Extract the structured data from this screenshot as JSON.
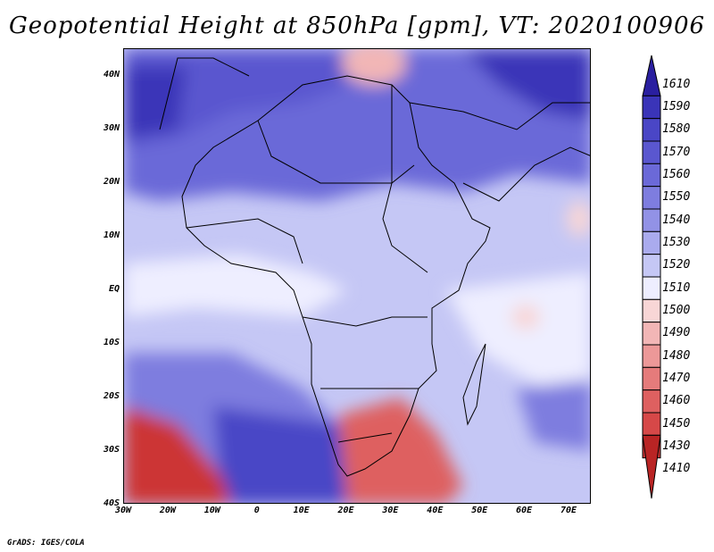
{
  "title": "Geopotential Height at 850hPa [gpm], VT: 2020100906",
  "credit": "GrADS: IGES/COLA",
  "map": {
    "extent": {
      "lon_min": -30,
      "lon_max": 75,
      "lat_min": -40,
      "lat_max": 45
    },
    "lat_ticks": [
      {
        "lat": 40,
        "label": "40N"
      },
      {
        "lat": 30,
        "label": "30N"
      },
      {
        "lat": 20,
        "label": "20N"
      },
      {
        "lat": 10,
        "label": "10N"
      },
      {
        "lat": 0,
        "label": "EQ"
      },
      {
        "lat": -10,
        "label": "10S"
      },
      {
        "lat": -20,
        "label": "20S"
      },
      {
        "lat": -30,
        "label": "30S"
      },
      {
        "lat": -40,
        "label": "40S"
      }
    ],
    "lon_ticks": [
      {
        "lon": -30,
        "label": "30W"
      },
      {
        "lon": -20,
        "label": "20W"
      },
      {
        "lon": -10,
        "label": "10W"
      },
      {
        "lon": 0,
        "label": "0"
      },
      {
        "lon": 10,
        "label": "10E"
      },
      {
        "lon": 20,
        "label": "20E"
      },
      {
        "lon": 30,
        "label": "30E"
      },
      {
        "lon": 40,
        "label": "40E"
      },
      {
        "lon": 50,
        "label": "50E"
      },
      {
        "lon": 60,
        "label": "60E"
      },
      {
        "lon": 70,
        "label": "70E"
      }
    ]
  },
  "colorbar": {
    "levels": [
      {
        "label": "1610",
        "color": "#2a1fa0"
      },
      {
        "label": "1590",
        "color": "#3a34b8"
      },
      {
        "label": "1580",
        "color": "#4a46c6"
      },
      {
        "label": "1570",
        "color": "#5a57cf"
      },
      {
        "label": "1560",
        "color": "#6b69d8"
      },
      {
        "label": "1550",
        "color": "#7e7ddf"
      },
      {
        "label": "1540",
        "color": "#9292e6"
      },
      {
        "label": "1530",
        "color": "#aaabee"
      },
      {
        "label": "1520",
        "color": "#c5c7f5"
      },
      {
        "label": "1510",
        "color": "#eeeeff"
      },
      {
        "label": "1500",
        "color": "#f8d6d6"
      },
      {
        "label": "1490",
        "color": "#f2b6b6"
      },
      {
        "label": "1480",
        "color": "#ec9898"
      },
      {
        "label": "1470",
        "color": "#e57b7b"
      },
      {
        "label": "1460",
        "color": "#de6060"
      },
      {
        "label": "1450",
        "color": "#d64848"
      },
      {
        "label": "1430",
        "color": "#cc3535"
      },
      {
        "label": "1410",
        "color": "#b92424"
      }
    ]
  }
}
